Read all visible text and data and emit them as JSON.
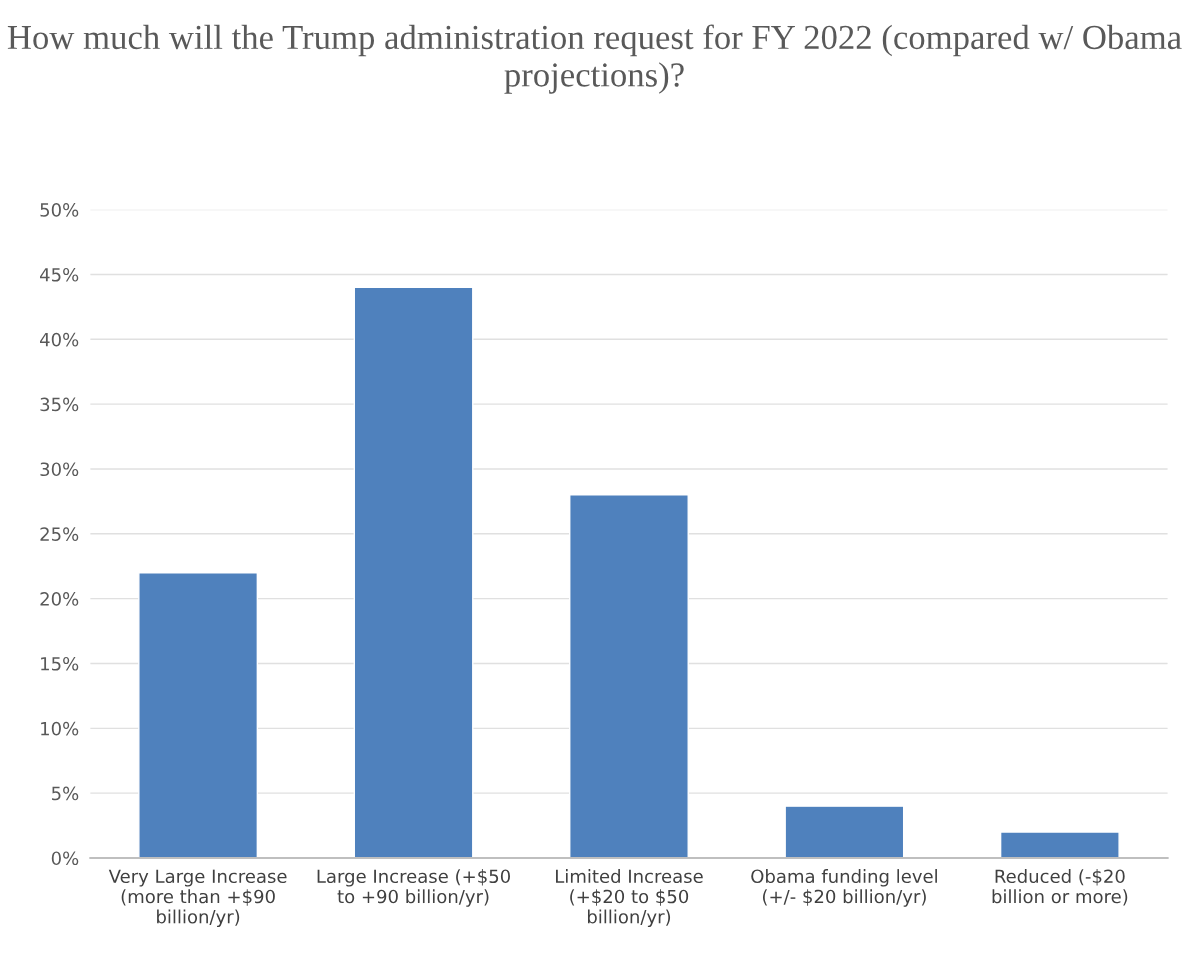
{
  "chart_data": {
    "type": "bar",
    "title": "How much will the Trump administration request for FY 2022 (compared w/ Obama projections)?",
    "categories": [
      "Very Large Increase (more than +$90 billion/yr)",
      "Large Increase (+$50 to +90 billion/yr)",
      "Limited Increase (+$20 to $50 billion/yr)",
      "Obama funding level (+/- $20 billion/yr)",
      "Reduced (-$20 billion or more)"
    ],
    "values": [
      22,
      44,
      28,
      4,
      2
    ],
    "color": "#4f81bd",
    "ylim": [
      0,
      50
    ],
    "yticks": [
      {
        "value": 0,
        "label": "0%"
      },
      {
        "value": 5,
        "label": "5%"
      },
      {
        "value": 10,
        "label": "10%"
      },
      {
        "value": 15,
        "label": "15%"
      },
      {
        "value": 20,
        "label": "20%"
      },
      {
        "value": 25,
        "label": "25%"
      },
      {
        "value": 30,
        "label": "30%"
      },
      {
        "value": 35,
        "label": "35%"
      },
      {
        "value": 40,
        "label": "40%"
      },
      {
        "value": 45,
        "label": "45%"
      },
      {
        "value": 50,
        "label": "50%"
      }
    ],
    "grid": "y"
  }
}
